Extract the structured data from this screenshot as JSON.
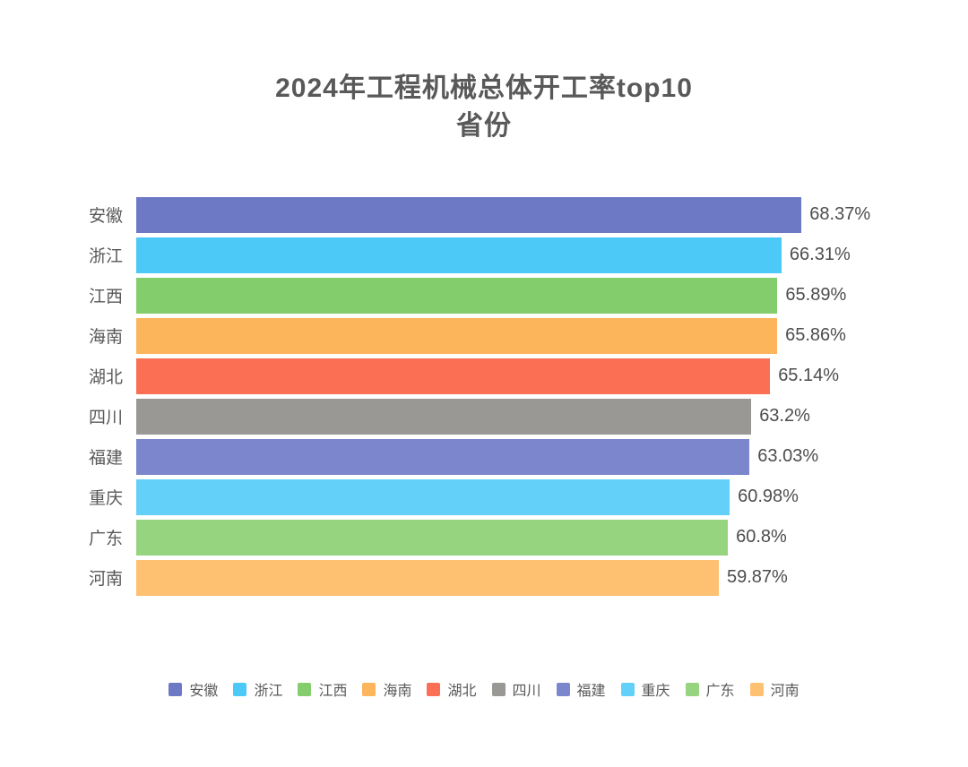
{
  "title": {
    "line1": "2024年工程机械总体开工率top10",
    "line2": "省份"
  },
  "text_colors": {
    "title": "#595959",
    "category": "#595959",
    "value": "#4d4d4d",
    "legend": "#595959"
  },
  "chart_data": {
    "type": "bar",
    "orientation": "horizontal",
    "title": "2024年工程机械总体开工率top10 省份",
    "xlabel": "",
    "ylabel": "",
    "xlim": [
      0,
      70
    ],
    "grid": false,
    "legend_position": "bottom",
    "categories": [
      "安徽",
      "浙江",
      "江西",
      "海南",
      "湖北",
      "四川",
      "福建",
      "重庆",
      "广东",
      "河南"
    ],
    "values": [
      68.37,
      66.31,
      65.89,
      65.86,
      65.14,
      63.2,
      63.03,
      60.98,
      60.8,
      59.87
    ],
    "value_labels": [
      "68.37%",
      "66.31%",
      "65.89%",
      "65.86%",
      "65.14%",
      "63.2%",
      "63.03%",
      "60.98%",
      "60.8%",
      "59.87%"
    ],
    "colors": [
      "#6e79c5",
      "#4dc9f8",
      "#84cd6c",
      "#fdb55c",
      "#fb6f55",
      "#9a9894",
      "#7c86cd",
      "#63d0f9",
      "#96d47f",
      "#fec071"
    ],
    "legend": [
      "安徽",
      "浙江",
      "江西",
      "海南",
      "湖北",
      "四川",
      "福建",
      "重庆",
      "广东",
      "河南"
    ]
  }
}
